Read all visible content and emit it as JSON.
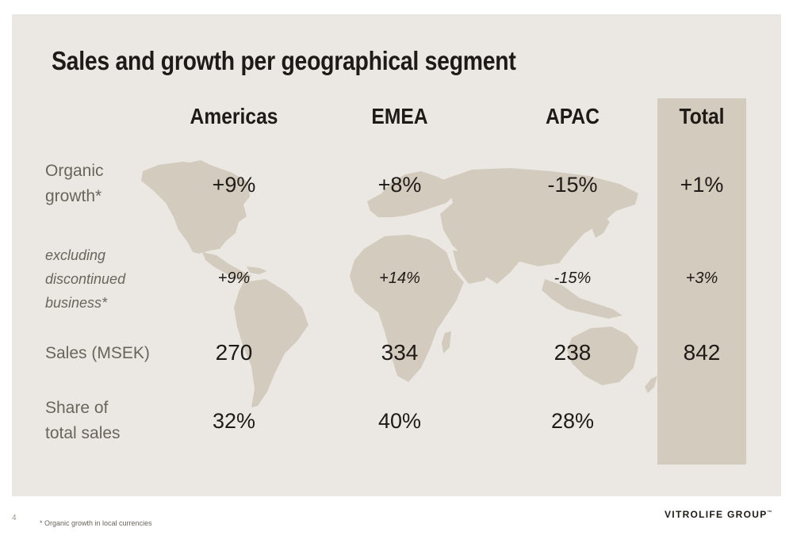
{
  "slide": {
    "title": "Sales and growth per geographical segment",
    "columns": [
      "Americas",
      "EMEA",
      "APAC",
      "Total"
    ],
    "rows": [
      {
        "label": "Organic\ngrowth*",
        "style": "normal",
        "values": [
          "+9%",
          "+8%",
          "-15%",
          "+1%"
        ]
      },
      {
        "label": "excluding\ndiscontinued\nbusiness*",
        "style": "italic",
        "values": [
          "+9%",
          "+14%",
          "-15%",
          "+3%"
        ]
      },
      {
        "label": "Sales (MSEK)",
        "style": "normal",
        "values": [
          "270",
          "334",
          "238",
          "842"
        ]
      },
      {
        "label": "Share of\ntotal sales",
        "style": "normal",
        "values": [
          "32%",
          "40%",
          "28%",
          ""
        ]
      }
    ],
    "colors": {
      "background": "#ebe8e3",
      "map": "#d3cbbd",
      "total_column": "#d3cbbd",
      "text": "#1e1a17",
      "label": "#6a645d"
    }
  },
  "footer": {
    "page_number": "4",
    "footnote": "* Organic growth in local currencies",
    "logo_text": "VITROLIFE GROUP",
    "logo_mark": "™"
  }
}
